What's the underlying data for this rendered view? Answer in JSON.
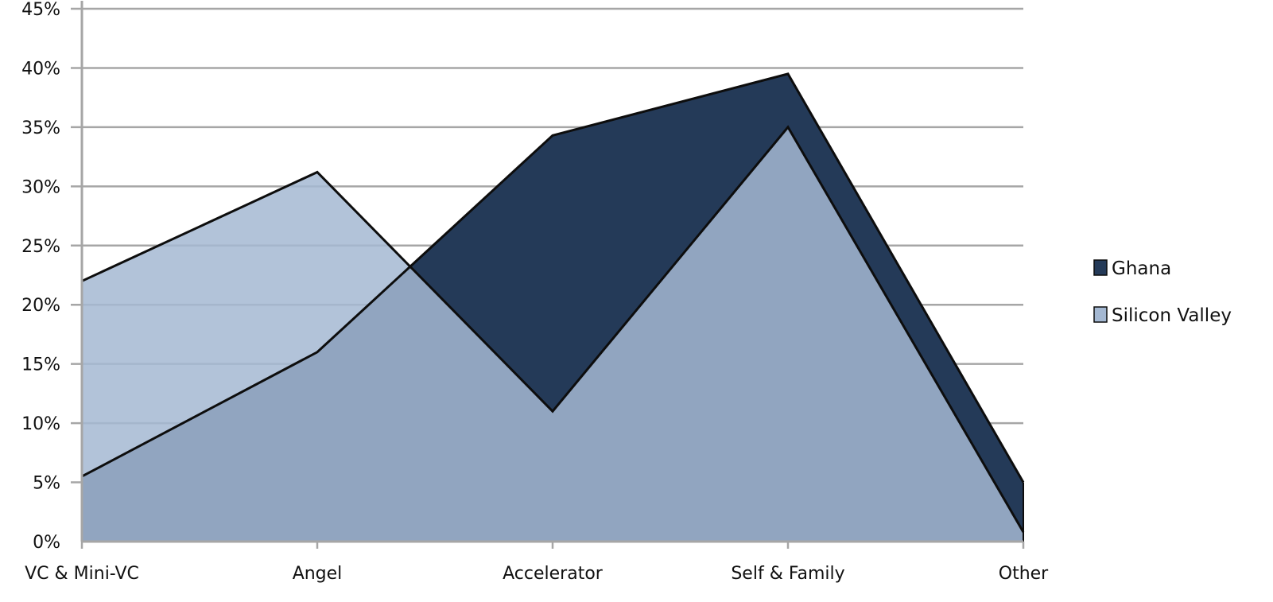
{
  "chart_data": {
    "type": "area",
    "title": "",
    "xlabel": "",
    "ylabel": "",
    "categories": [
      "VC & Mini-VC",
      "Angel",
      "Accelerator",
      "Self & Family",
      "Other"
    ],
    "ylim": [
      0,
      45
    ],
    "yticks": [
      0,
      5,
      10,
      15,
      20,
      25,
      30,
      35,
      40,
      45
    ],
    "ytick_format": "percent",
    "grid": true,
    "legend_position": "right",
    "series": [
      {
        "name": "Ghana",
        "values": [
          5.5,
          16,
          34.3,
          39.5,
          5
        ],
        "color": "#243a58"
      },
      {
        "name": "Silicon Valley",
        "values": [
          22,
          31.2,
          11,
          35,
          0.8
        ],
        "color": "#a4b8d2"
      }
    ]
  }
}
